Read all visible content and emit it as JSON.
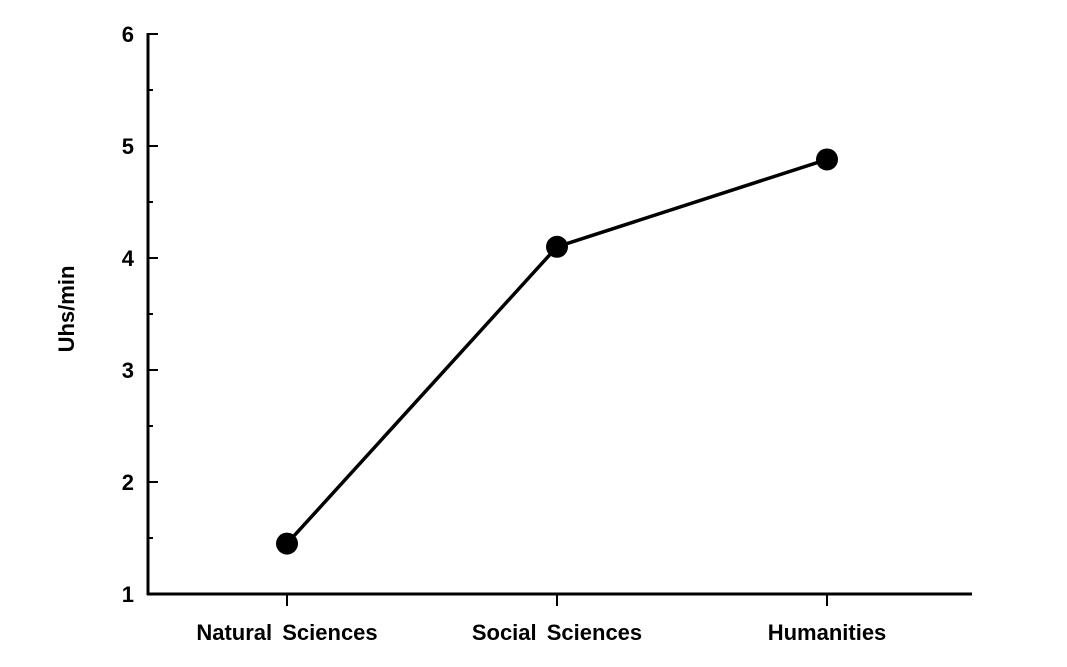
{
  "chart_data": {
    "type": "line",
    "title": "",
    "xlabel": "",
    "ylabel": "Uhs/min",
    "categories": [
      "Natural Sciences",
      "Social Sciences",
      "Humanities"
    ],
    "series": [
      {
        "values": [
          1.45,
          4.1,
          4.88
        ]
      }
    ],
    "ylim": [
      1,
      6
    ],
    "yticks": [
      "1",
      "2",
      "3",
      "4",
      "5",
      "6"
    ],
    "grid": false,
    "legend": "none",
    "colors": {
      "line": "#000000",
      "marker": "#000000",
      "axis": "#000000"
    }
  }
}
